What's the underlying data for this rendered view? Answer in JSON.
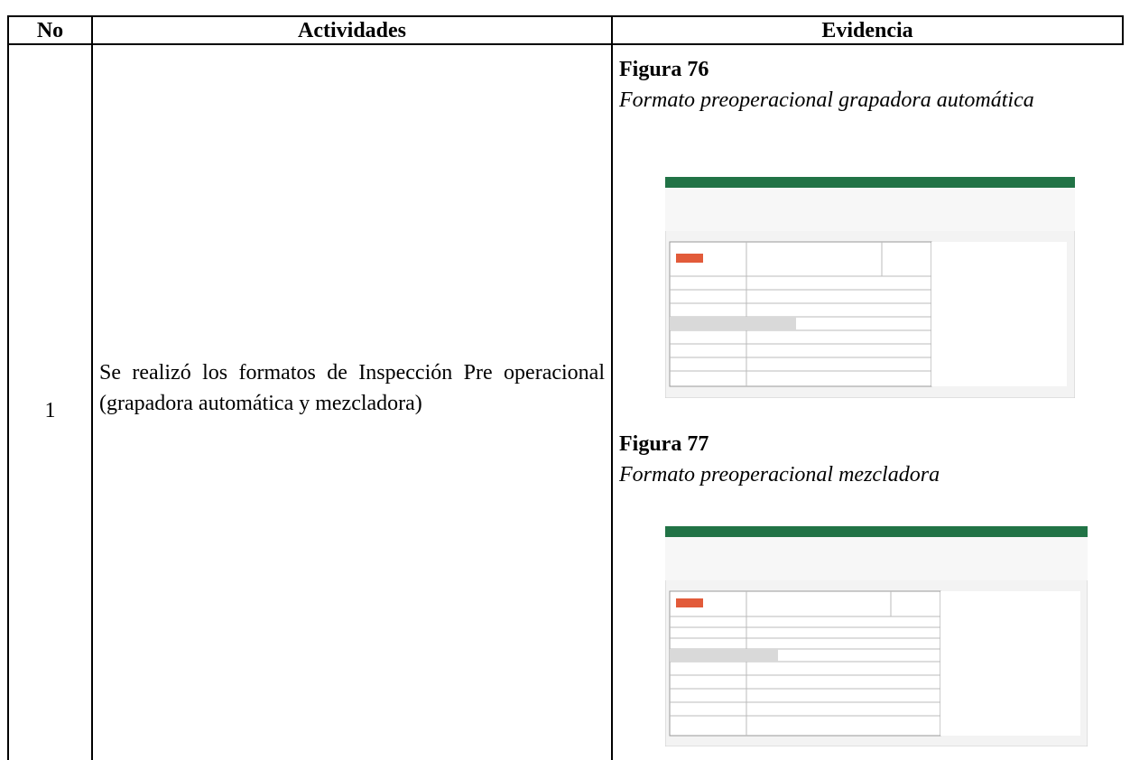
{
  "table": {
    "headers": [
      "No",
      "Actividades",
      "Evidencia"
    ],
    "rows": [
      [
        "1",
        "Se realizó los formatos de Inspección Pre operacional (grapadora automática y mezcladora)"
      ]
    ]
  },
  "evidence": {
    "figures": [
      {
        "label": "Figura 76",
        "caption": "Formato preoperacional grapadora automática"
      },
      {
        "label": "Figura 77",
        "caption": "Formato preoperacional mezcladora"
      }
    ]
  }
}
